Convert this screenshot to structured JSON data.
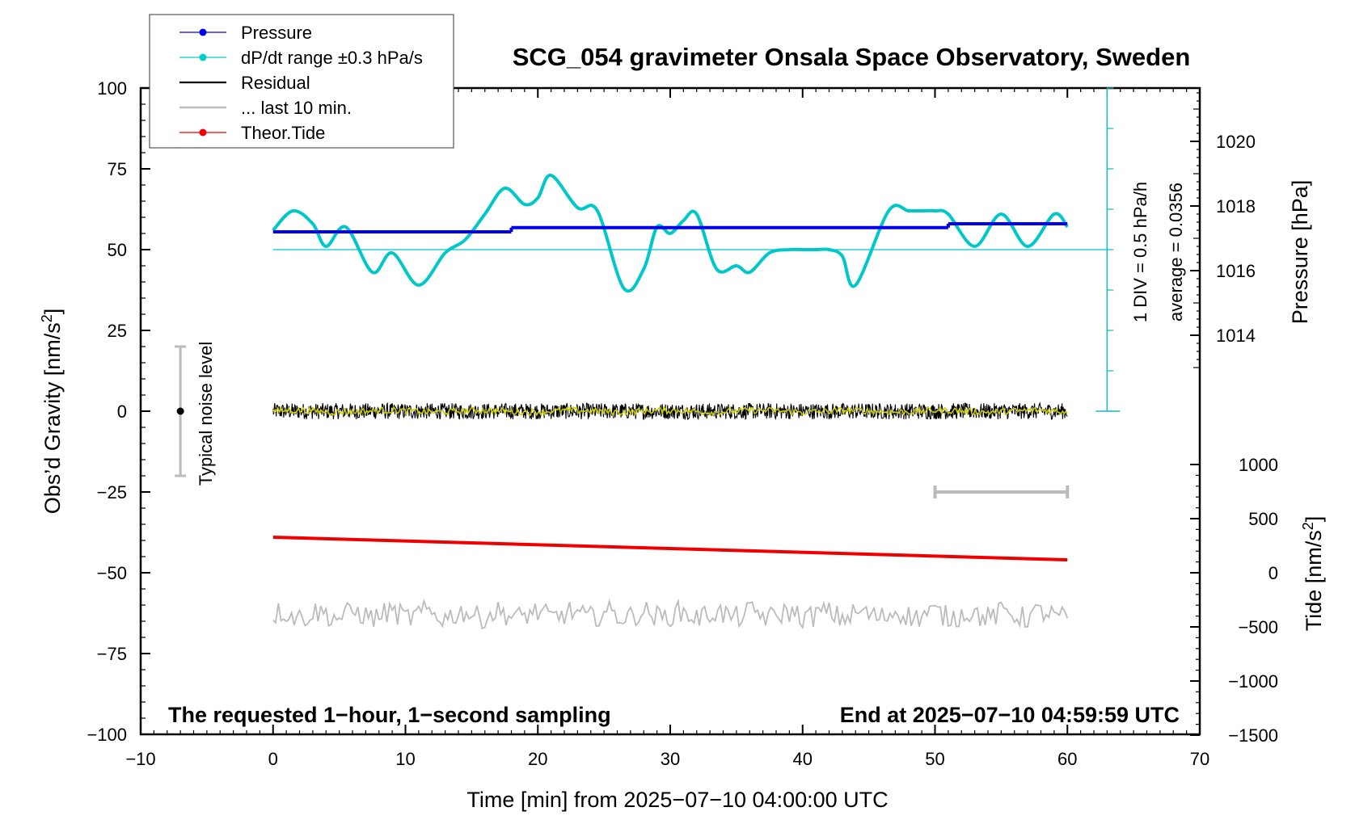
{
  "chart_data": {
    "type": "line",
    "title": "SCG_054 gravimeter Onsala Space Observatory, Sweden",
    "xlabel": "Time [min] from 2025−07−10 04:00:00 UTC",
    "ylabel_main": "Obs’d Gravity [nm/s",
    "ylabel_main_sup": "2",
    "ylabel_main_end": "]",
    "ylabel_pressure": "Pressure [hPa]",
    "ylabel_tide": "Tide [nm/s",
    "ylabel_tide_sup": "2",
    "ylabel_tide_end": "]",
    "xlim": [
      -10,
      70
    ],
    "ylim": [
      -100,
      100
    ],
    "x_ticks": [
      -10,
      0,
      10,
      20,
      30,
      40,
      50,
      60,
      70
    ],
    "x_tick_labels": [
      "−10",
      "0",
      "10",
      "20",
      "30",
      "40",
      "50",
      "60",
      "70"
    ],
    "y_ticks": [
      -100,
      -75,
      -50,
      -25,
      0,
      25,
      50,
      75,
      100
    ],
    "y_tick_labels": [
      "−100",
      "−75",
      "−50",
      "−25",
      "0",
      "25",
      "50",
      "75",
      "100"
    ],
    "pressure_axis": {
      "ticks": [
        1014,
        1016,
        1018,
        1020
      ],
      "tick_labels": [
        "1014",
        "1016",
        "1018",
        "1020"
      ],
      "range": [
        1010,
        1022
      ]
    },
    "tide_axis": {
      "ticks": [
        -1500,
        -1000,
        -500,
        0,
        500,
        1000
      ],
      "tick_labels": [
        "−1500",
        "−1000",
        "−500",
        "0",
        "500",
        "1000"
      ],
      "range": [
        -1500,
        1500
      ]
    },
    "legend": {
      "placement": "top-left",
      "entries": [
        {
          "label": "Pressure",
          "color": "#0000ee",
          "marker": true
        },
        {
          "label": "dP/dt range ±0.3 hPa/s",
          "color": "#00cccc",
          "marker": true
        },
        {
          "label": "Residual",
          "color": "#000000",
          "marker": false
        },
        {
          "label": "... last 10 min.",
          "color": "#bbbbbb",
          "marker": false
        },
        {
          "label": "Theor.Tide",
          "color": "#ee0000",
          "marker": true
        }
      ]
    },
    "series": [
      {
        "name": "Pressure",
        "axis": "pressure",
        "color": "#0000ee",
        "segments": [
          {
            "x": [
              0,
              18
            ],
            "y": [
              1017.2,
              1017.2
            ]
          },
          {
            "x": [
              18,
              51
            ],
            "y": [
              1017.33,
              1017.33
            ]
          },
          {
            "x": [
              51,
              60
            ],
            "y": [
              1017.45,
              1017.45
            ]
          }
        ]
      },
      {
        "name": "dP/dt",
        "axis": "gravity",
        "color": "#00c8c8",
        "x": [
          0,
          1.5,
          3,
          4,
          5.5,
          7.5,
          9,
          11,
          13,
          14.5,
          16,
          17.5,
          19,
          20,
          21,
          23,
          24.5,
          26.5,
          28,
          29,
          30,
          31,
          32,
          33.5,
          35,
          36,
          37.5,
          39,
          40,
          41,
          42,
          43,
          44,
          46.5,
          48,
          49,
          50,
          51,
          53,
          55,
          57,
          59,
          60
        ],
        "y": [
          56,
          62,
          58,
          51,
          57,
          43,
          49,
          39,
          49,
          53,
          61,
          69,
          64,
          66,
          73,
          63,
          62,
          38,
          44,
          57,
          55,
          59,
          61,
          44,
          45,
          43,
          49,
          50,
          50,
          50,
          50,
          48,
          39,
          62,
          62,
          62,
          62,
          61,
          51,
          61,
          51,
          61,
          57
        ]
      },
      {
        "name": "dP/dt average",
        "axis": "gravity",
        "color": "#00c8c8",
        "x": [
          0,
          63
        ],
        "y": [
          50,
          50
        ]
      },
      {
        "name": "Residual",
        "axis": "gravity",
        "color": "#000000",
        "x_range": [
          0,
          60
        ],
        "mean": 0,
        "noise_amplitude": 2.5
      },
      {
        "name": "Residual smoothed",
        "axis": "gravity",
        "color": "#cccc00",
        "x_range": [
          0,
          60
        ],
        "mean": 0,
        "noise_amplitude": 1.0
      },
      {
        "name": "Theor.Tide",
        "axis": "gravity",
        "color": "#ee0000",
        "x": [
          0,
          60
        ],
        "y": [
          -39,
          -46
        ]
      },
      {
        "name": "... last 10 min.",
        "axis": "gravity",
        "color": "#bbbbbb",
        "x_range": [
          0,
          60
        ],
        "mean": -63,
        "noise_amplitude": 3.5
      }
    ],
    "noise_level": {
      "label": "Typical noise level",
      "x": -7,
      "center": 0,
      "range": [
        -20,
        20
      ]
    },
    "last10_bar": {
      "x": [
        50,
        60
      ],
      "y": -25
    },
    "scale_bar": {
      "x": 63,
      "range": [
        0,
        100
      ],
      "label_div": "1 DIV = 0.5 hPa/h",
      "label_avg": "average = 0.0356"
    },
    "annotations": {
      "bottom_left": "The requested 1−hour, 1−second sampling",
      "bottom_right": "End at 2025−07−10 04:59:59 UTC"
    }
  }
}
